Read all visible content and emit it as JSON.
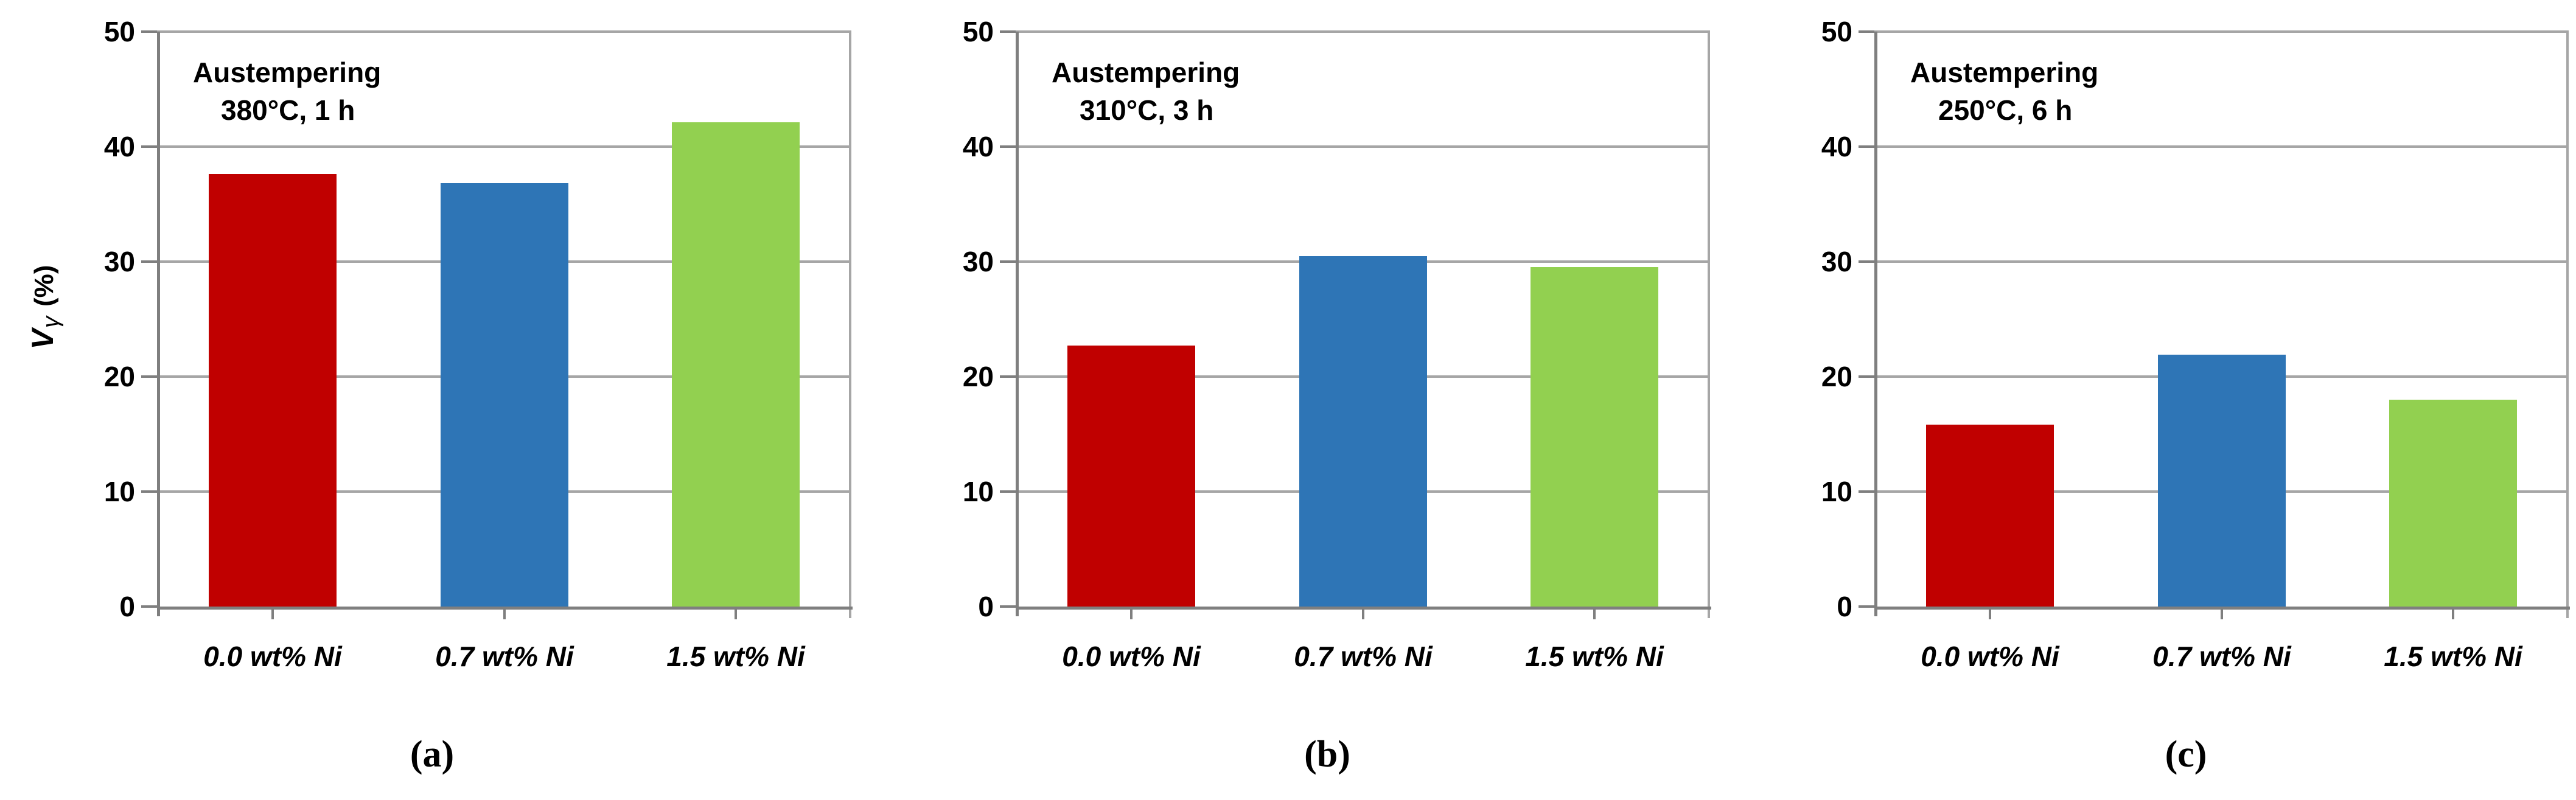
{
  "figure": {
    "background": "#ffffff"
  },
  "colors": {
    "bar_red": "#C00000",
    "bar_blue": "#2E75B6",
    "bar_green": "#92D050",
    "gridline": "#A6A6A6",
    "axis": "#7F7F7F",
    "text": "#000000"
  },
  "y_axis_title": {
    "main": "V",
    "subscript": "γ",
    "unit": "(%)"
  },
  "chart_data": [
    {
      "type": "bar",
      "panel_label": "(a)",
      "annotation": {
        "line1": "Austempering",
        "line2": "380°C, 1 h"
      },
      "categories": [
        "0.0 wt% Ni",
        "0.7 wt% Ni",
        "1.5 wt% Ni"
      ],
      "values": [
        37.6,
        36.8,
        42.1
      ],
      "bar_colors": [
        "#C00000",
        "#2E75B6",
        "#92D050"
      ],
      "ylabel": "Vγ (%)",
      "ylim": [
        0,
        50
      ],
      "yticks": [
        0,
        10,
        20,
        30,
        40,
        50
      ],
      "grid": true,
      "legend": false,
      "show_y_axis_title": true
    },
    {
      "type": "bar",
      "panel_label": "(b)",
      "annotation": {
        "line1": "Austempering",
        "line2": "310°C, 3 h"
      },
      "categories": [
        "0.0 wt% Ni",
        "0.7 wt% Ni",
        "1.5 wt% Ni"
      ],
      "values": [
        22.7,
        30.5,
        29.5
      ],
      "bar_colors": [
        "#C00000",
        "#2E75B6",
        "#92D050"
      ],
      "ylabel": "",
      "ylim": [
        0,
        50
      ],
      "yticks": [
        0,
        10,
        20,
        30,
        40,
        50
      ],
      "grid": true,
      "legend": false,
      "show_y_axis_title": false
    },
    {
      "type": "bar",
      "panel_label": "(c)",
      "annotation": {
        "line1": "Austempering",
        "line2": "250°C, 6 h"
      },
      "categories": [
        "0.0 wt% Ni",
        "0.7 wt% Ni",
        "1.5 wt% Ni"
      ],
      "values": [
        15.8,
        21.9,
        18.0
      ],
      "bar_colors": [
        "#C00000",
        "#2E75B6",
        "#92D050"
      ],
      "ylabel": "",
      "ylim": [
        0,
        50
      ],
      "yticks": [
        0,
        10,
        20,
        30,
        40,
        50
      ],
      "grid": true,
      "legend": false,
      "show_y_axis_title": false
    }
  ]
}
